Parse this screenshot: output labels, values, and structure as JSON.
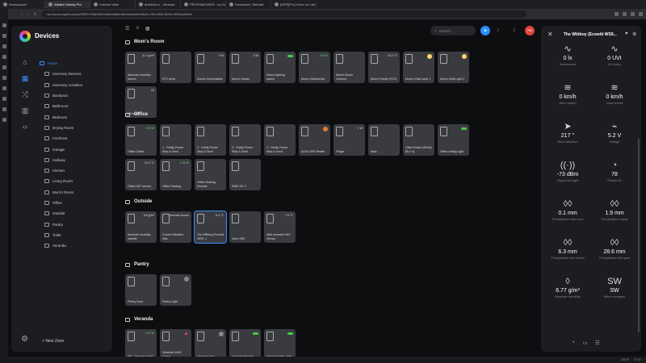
{
  "browser": {
    "tabs": [
      "Workspaces",
      "Athlai's Homey Pro",
      "Camera View",
      "ambient.ru - Veranda",
      "PROFIAMOWER - by Outin...",
      "Download | Taleuski",
      "[APP][Pro] Voice on Call..."
    ],
    "url": "my.homey.app/homeys/6587b7f0ab0f2f1bb6bad83e/devices/web/93a2c-7f5f-4962-8b3e-9f023ad30dd"
  },
  "app": {
    "title": "Devices",
    "new_zone": "New Zone"
  },
  "sidebar": {
    "zones": [
      {
        "label": "Home",
        "level": 0,
        "active": true
      },
      {
        "label": "Harmony Devices",
        "level": 1
      },
      {
        "label": "Harmony Activities",
        "level": 1
      },
      {
        "label": "Backyard",
        "level": 1
      },
      {
        "label": "Bathroom",
        "level": 1
      },
      {
        "label": "Bedroom",
        "level": 1
      },
      {
        "label": "Drying Room",
        "level": 1
      },
      {
        "label": "Forefront",
        "level": 1
      },
      {
        "label": "Garage",
        "level": 1
      },
      {
        "label": "Hallway",
        "level": 1
      },
      {
        "label": "Kitchen",
        "level": 1
      },
      {
        "label": "Living Room",
        "level": 1
      },
      {
        "label": "Mom's Room",
        "level": 1
      },
      {
        "label": "Office",
        "level": 1
      },
      {
        "label": "Outside",
        "level": 1
      },
      {
        "label": "Pantry",
        "level": 1
      },
      {
        "label": "Toilet",
        "level": 1
      },
      {
        "label": "Veranda",
        "level": 1
      }
    ]
  },
  "toolbar": {
    "search_placeholder": "Search...",
    "avatar": "AS"
  },
  "sections": [
    {
      "title": "Mom's Room",
      "tiles": [
        {
          "name": "Absolute humidity - Mom's",
          "value": "11.4 g/m³"
        },
        {
          "name": "RTV Anya",
          "value": ""
        },
        {
          "name": "Koenic Dehumidifier",
          "value": "0 W"
        },
        {
          "name": "Mom's Heater",
          "value": "0 W"
        },
        {
          "name": "Mom's lighting switch",
          "value": "",
          "toggle": true
        },
        {
          "name": "Mom's Multimedia",
          "value": "100 W",
          "green": true
        },
        {
          "name": "Mom's Room Camera",
          "value": ""
        },
        {
          "name": "Mom's Shelly HTG3",
          "value": "23.2 °C"
        },
        {
          "name": "Mom's Wall Lamp 1",
          "value": "",
          "dot": "on"
        },
        {
          "name": "Mom's Wall Light 2",
          "value": "",
          "dot": "on"
        },
        {
          "name": "VThermo",
          "value": "23"
        }
      ]
    },
    {
      "title": "Office",
      "tiles": [
        {
          "name": "Office Outlet",
          "value": "7.09 W",
          "green": true
        },
        {
          "name": "1 - Shelly Power Strip 4 Gen4",
          "value": ""
        },
        {
          "name": "2 - Shelly Power Strip 4 Gen4",
          "value": ""
        },
        {
          "name": "3 - Shelly Power Strip 4 Gen4",
          "value": ""
        },
        {
          "name": "4 - Shelly Power Strip 4 Gen4",
          "value": ""
        },
        {
          "name": "AZAX WiFi Heater",
          "value": "",
          "dot": "orange"
        },
        {
          "name": "Fridge",
          "value": "1 W"
        },
        {
          "name": "iMac",
          "value": ""
        },
        {
          "name": "Office Button (Shelly BLU 4)",
          "value": ""
        },
        {
          "name": "Office ceiling Light",
          "value": "",
          "toggle": true
        },
        {
          "name": "Office H&T sensor",
          "value": "22.2 °C"
        },
        {
          "name": "Office Heating",
          "value": "1.98 W",
          "green": true
        },
        {
          "name": "Office Heating Remote",
          "value": ""
        },
        {
          "name": "RME 4XI-2",
          "value": ""
        }
      ]
    },
    {
      "title": "Outside",
      "tiles": [
        {
          "name": "Absolute humidity outside",
          "value": "6.8 g/m³"
        },
        {
          "name": "Current Weather Stat.",
          "value": "overcast clouds"
        },
        {
          "name": "The Wittboy (Ecowitt WS9...)",
          "value": "6.4 °C",
          "selected": true
        },
        {
          "name": "Volvo V60",
          "value": ""
        },
        {
          "name": "Wall mounted H&T Sensor",
          "value": "7.5 °C"
        }
      ]
    },
    {
      "title": "Pantry",
      "tiles": [
        {
          "name": "Pantry Door",
          "value": ""
        },
        {
          "name": "Pantry Light",
          "value": "",
          "dot": "off"
        }
      ]
    },
    {
      "title": "Veranda",
      "tiles": [
        {
          "name": "PM - Veranda HVAC",
          "value": "1.00 W",
          "green": true
        },
        {
          "name": "Veranda HVAC (Gree)",
          "value": "",
          "warn": true
        },
        {
          "name": "Veranda lamp",
          "value": "",
          "dot": "off"
        },
        {
          "name": "Veranda Remote",
          "value": "",
          "toggle": true
        },
        {
          "name": "Veranda Wall Lights",
          "value": "",
          "toggle": true
        }
      ]
    }
  ],
  "panel": {
    "title": "The Wittboy (Ecowitt WS9...",
    "capabilities": [
      {
        "icon": "∿",
        "value": "0 lx",
        "label": "Illuminance"
      },
      {
        "icon": "∿",
        "value": "0 UVI",
        "label": "UV Index"
      },
      {
        "icon": "≋",
        "value": "0 km/h",
        "label": "Wind speed"
      },
      {
        "icon": "≋",
        "value": "0 km/h",
        "label": "Gust speed"
      },
      {
        "icon": "➤",
        "value": "217 °",
        "label": "Wind direction"
      },
      {
        "icon": "⌁",
        "value": "5.2 V",
        "label": "Voltage"
      },
      {
        "icon": "((·))",
        "value": "-73 dBm",
        "label": "Signal strength"
      },
      {
        "icon": "◔",
        "value": "78",
        "label": "Packet ID"
      },
      {
        "icon": "◊◊",
        "value": "0.1 mm",
        "label": "Precipitation this hour"
      },
      {
        "icon": "◊◊",
        "value": "1.9 mm",
        "label": "Precipitation today"
      },
      {
        "icon": "◊◊",
        "value": "6.3 mm",
        "label": "Precipitation this month"
      },
      {
        "icon": "◊◊",
        "value": "28.6 mm",
        "label": "Precipitation this year"
      },
      {
        "icon": "◊",
        "value": "6.77 g/m³",
        "label": "Absolute humidity"
      },
      {
        "icon": "SW",
        "value": "SW",
        "label": "Wind compass"
      }
    ]
  },
  "statusbar": {
    "zoom": "100 %",
    "time": "17:47"
  }
}
